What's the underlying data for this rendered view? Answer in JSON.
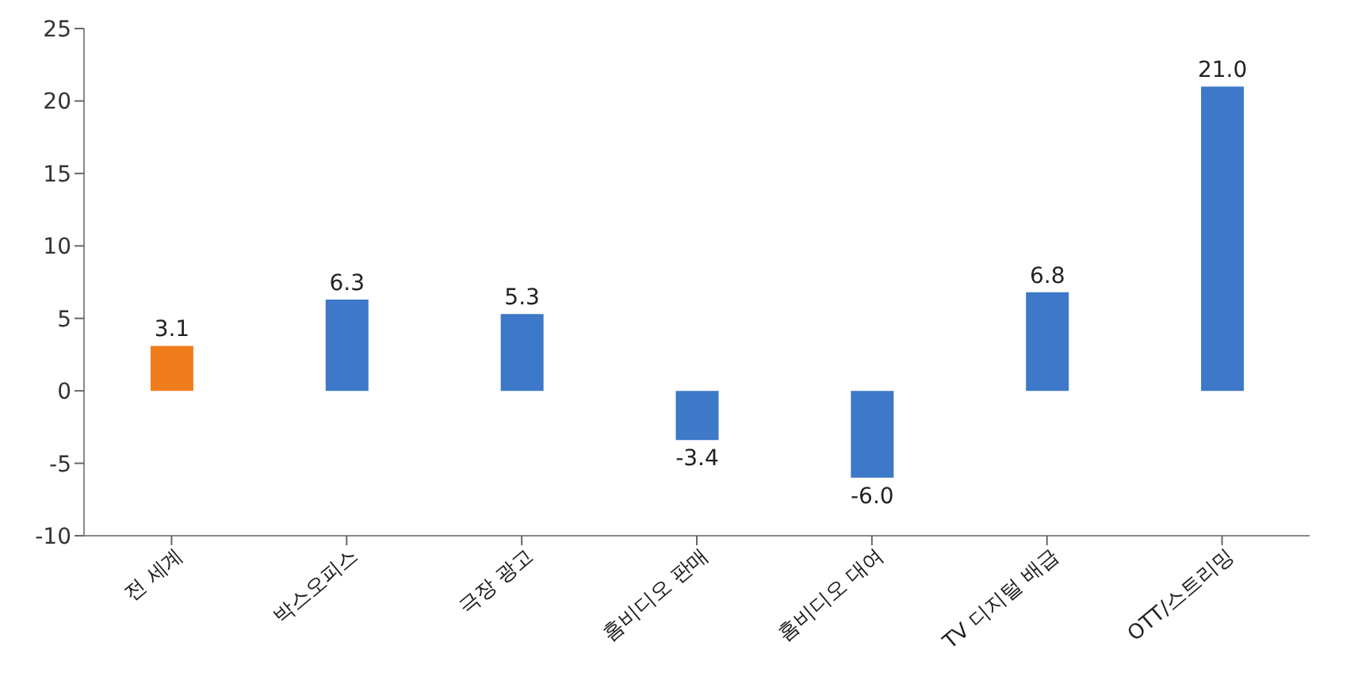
{
  "chart_data": {
    "type": "bar",
    "categories": [
      "전 세계",
      "박스오피스",
      "극장 광고",
      "홈비디오 판매",
      "홈비디오 대여",
      "TV 디지털 배급",
      "OTT/스트리밍"
    ],
    "values": [
      3.1,
      6.3,
      5.3,
      -3.4,
      -6.0,
      6.8,
      21.0
    ],
    "value_labels": [
      "3.1",
      "6.3",
      "5.3",
      "-3.4",
      "-6.0",
      "6.8",
      "21.0"
    ],
    "colors": [
      "#f07d1c",
      "#3d78c9",
      "#3d78c9",
      "#3d78c9",
      "#3d78c9",
      "#3d78c9",
      "#3d78c9"
    ],
    "ylim": [
      -10,
      25
    ],
    "yticks": [
      -10,
      -5,
      0,
      5,
      10,
      15,
      20,
      25
    ],
    "grid": false,
    "legend": false
  }
}
